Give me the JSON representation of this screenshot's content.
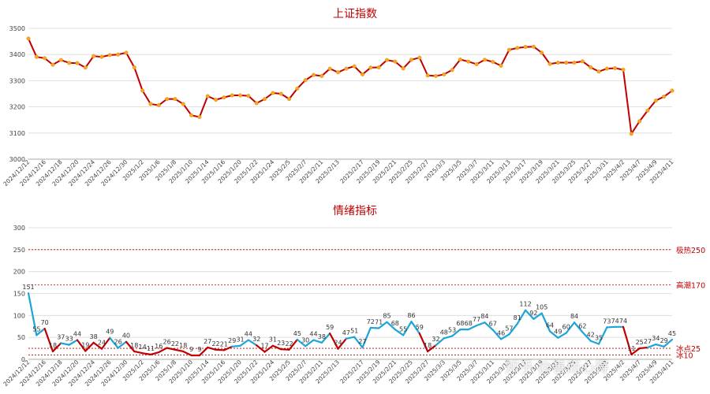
{
  "chart_data": [
    {
      "type": "line",
      "title": "上证指数",
      "color": "#c00000",
      "marker_color": "#f5a623",
      "ylim": [
        3000,
        3500
      ],
      "yticks": [
        3000,
        3100,
        3200,
        3300,
        3400,
        3500
      ],
      "xtick_labels": [
        "2024/12/12",
        "2024/12/16",
        "2024/12/18",
        "2024/12/20",
        "2024/12/24",
        "2024/12/26",
        "2024/12/30",
        "2025/1/2",
        "2025/1/6",
        "2025/1/8",
        "2025/1/10",
        "2025/1/14",
        "2025/1/16",
        "2025/1/20",
        "2025/1/22",
        "2025/1/24",
        "2025/2/5",
        "2025/2/7",
        "2025/2/11",
        "2025/2/13",
        "2025/2/17",
        "2025/2/19",
        "2025/2/21",
        "2025/2/25",
        "2025/2/27",
        "2025/3/3",
        "2025/3/5",
        "2025/3/7",
        "2025/3/11",
        "2025/3/13",
        "2025/3/17",
        "2025/3/19",
        "2025/3/21",
        "2025/3/25",
        "2025/3/27",
        "2025/3/31",
        "2025/4/2",
        "2025/4/7",
        "2025/4/9",
        "2025/4/11"
      ],
      "values": [
        3461,
        3391,
        3386,
        3361,
        3379,
        3368,
        3367,
        3350,
        3394,
        3391,
        3398,
        3400,
        3407,
        3351,
        3262,
        3211,
        3206,
        3230,
        3230,
        3211,
        3168,
        3161,
        3241,
        3227,
        3236,
        3244,
        3244,
        3242,
        3214,
        3230,
        3253,
        3250,
        3230,
        3270,
        3302,
        3322,
        3318,
        3346,
        3332,
        3346,
        3355,
        3324,
        3350,
        3351,
        3379,
        3373,
        3347,
        3380,
        3388,
        3320,
        3318,
        3324,
        3341,
        3381,
        3373,
        3363,
        3380,
        3372,
        3357,
        3418,
        3425,
        3429,
        3430,
        3407,
        3364,
        3369,
        3369,
        3369,
        3374,
        3351,
        3335,
        3346,
        3348,
        3342,
        3097,
        3145,
        3186,
        3224,
        3239,
        3262
      ]
    },
    {
      "type": "line",
      "title": "情绪指标",
      "color": "#1ba5d8",
      "low_color": "#c00000",
      "ylim": [
        0,
        300
      ],
      "yticks": [
        0,
        50,
        100,
        150,
        200,
        250,
        300
      ],
      "xtick_labels": [
        "2024/12/12",
        "2024/12/16",
        "2024/12/18",
        "2024/12/20",
        "2024/12/24",
        "2024/12/26",
        "2024/12/30",
        "2025/1/2",
        "2025/1/6",
        "2025/1/8",
        "2025/1/10",
        "2025/1/14",
        "2025/1/16",
        "2025/1/20",
        "2025/1/22",
        "2025/1/24",
        "2025/2/5",
        "2025/2/7",
        "2025/2/11",
        "2025/2/13",
        "2025/2/17",
        "2025/2/19",
        "2025/2/21",
        "2025/2/25",
        "2025/2/27",
        "2025/3/3",
        "2025/3/5",
        "2025/3/7",
        "2025/3/11",
        "2025/3/13",
        "2025/3/17",
        "2025/3/19",
        "2025/3/21",
        "2025/3/25",
        "2025/3/27",
        "2025/3/31",
        "2025/4/2",
        "2025/4/7",
        "2025/4/9",
        "2025/4/11"
      ],
      "values": [
        151,
        55,
        70,
        18,
        37,
        33,
        44,
        19,
        38,
        24,
        49,
        26,
        40,
        18,
        14,
        11,
        16,
        26,
        22,
        18,
        9,
        9,
        27,
        22,
        21,
        29,
        31,
        44,
        32,
        17,
        31,
        23,
        22,
        45,
        30,
        44,
        38,
        59,
        24,
        47,
        51,
        27,
        72,
        71,
        85,
        68,
        55,
        86,
        59,
        18,
        32,
        48,
        53,
        68,
        68,
        77,
        84,
        67,
        46,
        57,
        81,
        112,
        92,
        105,
        64,
        49,
        60,
        84,
        62,
        42,
        35,
        73,
        74,
        74,
        11,
        25,
        27,
        34,
        29,
        45
      ],
      "labels": [
        "151",
        "55",
        "70",
        "18",
        "37",
        "33",
        "44",
        "19",
        "38",
        "24",
        "49",
        "26",
        "40",
        "18",
        "14",
        "11",
        "16",
        "26",
        "22",
        "18",
        "9",
        "9",
        "27",
        "22",
        "21",
        "29",
        "31",
        "44",
        "32",
        "17",
        "31",
        "23",
        "22",
        "45",
        "30",
        "44",
        "38",
        "59",
        "24",
        "47",
        "51",
        "27",
        "72",
        "71",
        "85",
        "68",
        "55",
        "86",
        "59",
        "18",
        "32",
        "48",
        "53",
        "68",
        "68",
        "77",
        "84",
        "67",
        "46",
        "57",
        "81",
        "112",
        "92",
        "105",
        "64",
        "49",
        "60",
        "84",
        "62",
        "42",
        "35",
        "73",
        "74",
        "74",
        "11",
        "25",
        "27",
        "34",
        "29",
        "45"
      ],
      "reference_lines": [
        {
          "value": 250,
          "label": "极热250"
        },
        {
          "value": 170,
          "label": "高潮170"
        },
        {
          "value": 25,
          "label": "冰点25"
        },
        {
          "value": 10,
          "label": "冰10"
        }
      ],
      "reference_color": "#c00000"
    }
  ],
  "watermark": "知乎 @善而心得"
}
